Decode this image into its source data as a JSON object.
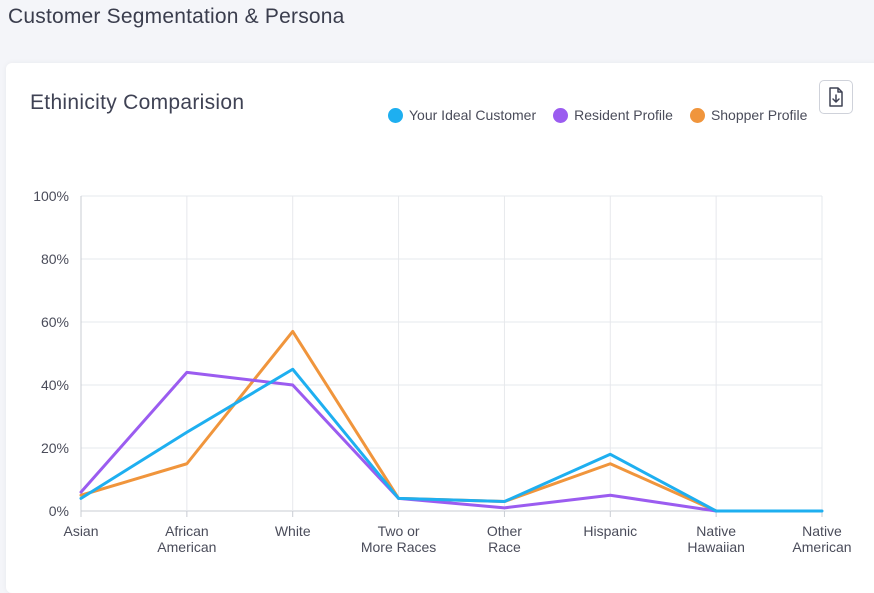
{
  "page": {
    "title": "Customer Segmentation & Persona"
  },
  "card": {
    "title": "Ethinicity Comparision",
    "download_icon": "download-file-icon"
  },
  "chart_data": {
    "type": "line",
    "title": "Ethinicity Comparision",
    "categories": [
      [
        "Asian"
      ],
      [
        "African",
        "American"
      ],
      [
        "White"
      ],
      [
        "Two or",
        "More Races"
      ],
      [
        "Other",
        "Race"
      ],
      [
        "Hispanic"
      ],
      [
        "Native",
        "Hawaiian"
      ],
      [
        "Native",
        "American"
      ]
    ],
    "series": [
      {
        "name": "Your Ideal Customer",
        "color": "#1eaff0",
        "values": [
          4,
          25,
          45,
          4,
          3,
          18,
          0,
          0
        ]
      },
      {
        "name": "Resident Profile",
        "color": "#9b5cf0",
        "values": [
          6,
          44,
          40,
          4,
          1,
          5,
          0,
          null
        ]
      },
      {
        "name": "Shopper Profile",
        "color": "#f0953c",
        "values": [
          5,
          15,
          57,
          4,
          3,
          15,
          0,
          null
        ]
      }
    ],
    "y_ticks": [
      "0%",
      "20%",
      "40%",
      "60%",
      "80%",
      "100%"
    ],
    "ylim": [
      0,
      100
    ],
    "grid": true,
    "legend_position": "top-right",
    "xlabel": "",
    "ylabel": ""
  }
}
